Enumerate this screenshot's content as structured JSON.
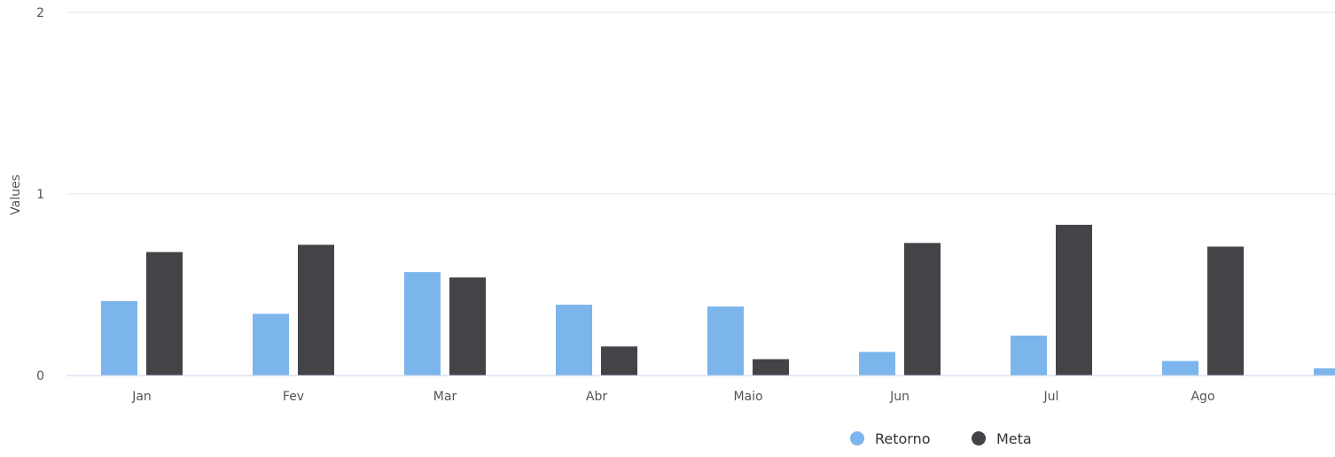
{
  "chart_data": {
    "type": "bar",
    "ylabel": "Values",
    "ylim": [
      0,
      2
    ],
    "yticks": [
      "0",
      "1",
      "2"
    ],
    "categories": [
      "Jan",
      "Fev",
      "Mar",
      "Abr",
      "Maio",
      "Jun",
      "Jul",
      "Ago",
      ""
    ],
    "series": [
      {
        "name": "Retorno",
        "color": "#7cb5ec",
        "values": [
          0.41,
          0.34,
          0.57,
          0.39,
          0.38,
          0.13,
          0.22,
          0.08,
          0.04
        ]
      },
      {
        "name": "Meta",
        "color": "#434348",
        "values": [
          0.68,
          0.72,
          0.54,
          0.16,
          0.09,
          0.73,
          0.83,
          0.71,
          null
        ]
      }
    ],
    "grid": true,
    "legend": "bottom-right"
  }
}
